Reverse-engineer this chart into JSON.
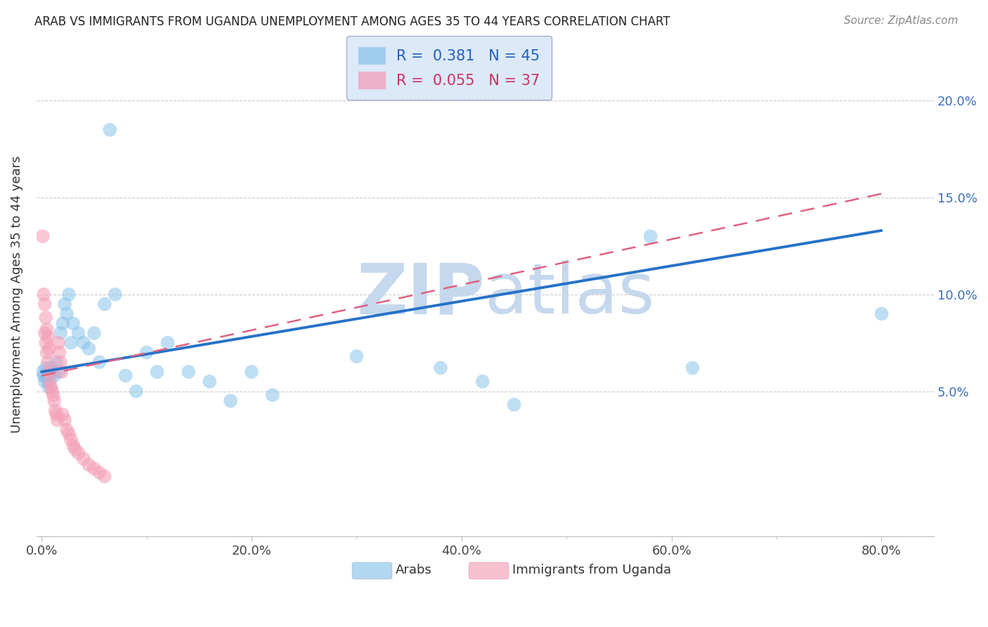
{
  "title": "ARAB VS IMMIGRANTS FROM UGANDA UNEMPLOYMENT AMONG AGES 35 TO 44 YEARS CORRELATION CHART",
  "source": "Source: ZipAtlas.com",
  "ylabel": "Unemployment Among Ages 35 to 44 years",
  "xlabel_ticks": [
    "0.0%",
    "20.0%",
    "40.0%",
    "60.0%",
    "80.0%"
  ],
  "xlabel_vals": [
    0.0,
    0.2,
    0.4,
    0.6,
    0.8
  ],
  "ylabel_ticks": [
    "5.0%",
    "10.0%",
    "15.0%",
    "20.0%"
  ],
  "ylabel_vals": [
    0.05,
    0.1,
    0.15,
    0.2
  ],
  "xlim": [
    -0.005,
    0.85
  ],
  "ylim": [
    -0.025,
    0.225
  ],
  "arab_R": 0.381,
  "arab_N": 45,
  "uganda_R": 0.055,
  "uganda_N": 37,
  "arab_color": "#7fbfe8",
  "uganda_color": "#f4a0b8",
  "arab_line_color": "#2672c8",
  "uganda_line_color": "#e06080",
  "watermark_color": "#c5d8ed",
  "legend_box_color": "#dce9f8",
  "arab_line_x0": 0.0,
  "arab_line_y0": 0.06,
  "arab_line_x1": 0.8,
  "arab_line_y1": 0.133,
  "uganda_line_x0": 0.0,
  "uganda_line_y0": 0.058,
  "uganda_line_x1": 0.8,
  "uganda_line_y1": 0.152,
  "arab_x": [
    0.001,
    0.002,
    0.003,
    0.004,
    0.005,
    0.006,
    0.007,
    0.008,
    0.009,
    0.01,
    0.012,
    0.014,
    0.016,
    0.018,
    0.02,
    0.022,
    0.024,
    0.026,
    0.028,
    0.03,
    0.035,
    0.04,
    0.045,
    0.05,
    0.055,
    0.06,
    0.065,
    0.07,
    0.08,
    0.09,
    0.1,
    0.11,
    0.12,
    0.14,
    0.16,
    0.18,
    0.2,
    0.22,
    0.3,
    0.38,
    0.42,
    0.45,
    0.58,
    0.62,
    0.8
  ],
  "arab_y": [
    0.06,
    0.058,
    0.055,
    0.062,
    0.058,
    0.055,
    0.052,
    0.06,
    0.062,
    0.06,
    0.058,
    0.065,
    0.06,
    0.08,
    0.085,
    0.095,
    0.09,
    0.1,
    0.075,
    0.085,
    0.08,
    0.075,
    0.072,
    0.08,
    0.065,
    0.095,
    0.185,
    0.1,
    0.058,
    0.05,
    0.07,
    0.06,
    0.075,
    0.06,
    0.055,
    0.045,
    0.06,
    0.048,
    0.068,
    0.062,
    0.055,
    0.043,
    0.13,
    0.062,
    0.09
  ],
  "uganda_x": [
    0.001,
    0.002,
    0.003,
    0.004,
    0.005,
    0.006,
    0.007,
    0.008,
    0.009,
    0.01,
    0.011,
    0.012,
    0.013,
    0.014,
    0.015,
    0.016,
    0.017,
    0.018,
    0.019,
    0.02,
    0.022,
    0.024,
    0.026,
    0.028,
    0.03,
    0.032,
    0.035,
    0.04,
    0.045,
    0.05,
    0.055,
    0.06,
    0.003,
    0.004,
    0.005,
    0.006,
    0.007
  ],
  "uganda_y": [
    0.13,
    0.1,
    0.08,
    0.075,
    0.07,
    0.065,
    0.06,
    0.055,
    0.052,
    0.05,
    0.048,
    0.045,
    0.04,
    0.038,
    0.035,
    0.075,
    0.07,
    0.065,
    0.06,
    0.038,
    0.035,
    0.03,
    0.028,
    0.025,
    0.022,
    0.02,
    0.018,
    0.015,
    0.012,
    0.01,
    0.008,
    0.006,
    0.095,
    0.088,
    0.082,
    0.078,
    0.072
  ]
}
